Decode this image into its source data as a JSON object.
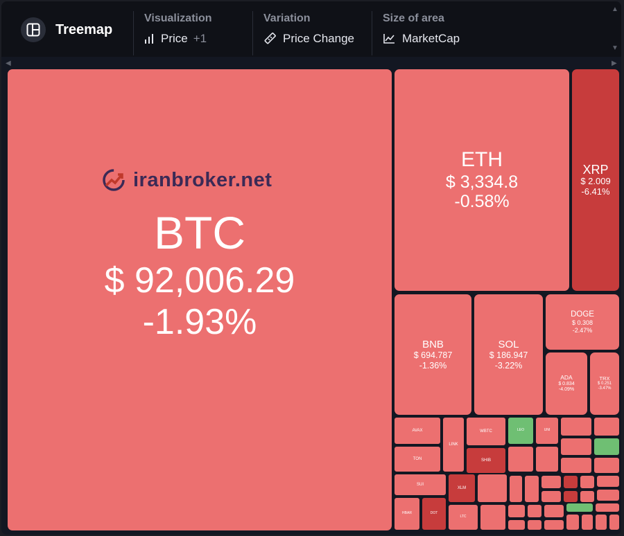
{
  "toolbar": {
    "title": "Treemap",
    "visualization": {
      "label": "Visualization",
      "value": "Price",
      "extra": "+1"
    },
    "variation": {
      "label": "Variation",
      "value": "Price Change"
    },
    "size_of_area": {
      "label": "Size of area",
      "value": "MarketCap"
    }
  },
  "watermark": "iranbroker.net",
  "colors": {
    "down": "#ec7070",
    "down_strong": "#c73c3c",
    "up": "#6fbf73",
    "border": "#131722"
  },
  "tiles": [
    {
      "sym": "BTC",
      "price": "$ 92,006.29",
      "change": "-1.93%"
    },
    {
      "sym": "ETH",
      "price": "$ 3,334.8",
      "change": "-0.58%"
    },
    {
      "sym": "XRP",
      "price": "$ 2.009",
      "change": "-6.41%"
    },
    {
      "sym": "BNB",
      "price": "$ 694.787",
      "change": "-1.36%"
    },
    {
      "sym": "SOL",
      "price": "$ 186.947",
      "change": "-3.22%"
    },
    {
      "sym": "DOGE",
      "price": "$ 0.308",
      "change": "-2.47%"
    },
    {
      "sym": "ADA",
      "price": "$ 0.834",
      "change": "-4.09%"
    },
    {
      "sym": "TRX",
      "price": "$ 0.251",
      "change": "-3.47%"
    }
  ],
  "small_tiles": [
    "AVAX",
    "LINK",
    "WBTC",
    "LEO",
    "UNI",
    "TON",
    "SHIB",
    "XLM",
    "SUI",
    "HBAR",
    "BCH",
    "DOT",
    "LTC"
  ]
}
